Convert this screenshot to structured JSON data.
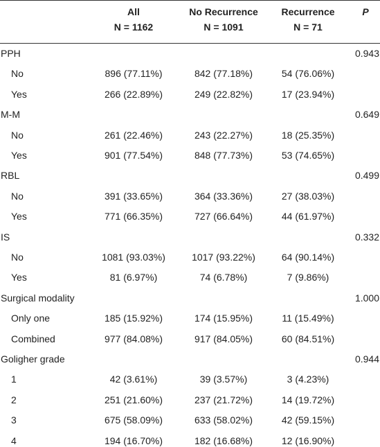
{
  "header": {
    "columns": [
      {
        "name": "All",
        "n": "N = 1162"
      },
      {
        "name": "No Recurrence",
        "n": "N = 1091"
      },
      {
        "name": "Recurrence",
        "n": "N = 71"
      }
    ],
    "p": "P"
  },
  "groups": [
    {
      "title": "PPH",
      "p": "0.943",
      "rows": [
        [
          "No",
          "896 (77.11%)",
          "842 (77.18%)",
          "54 (76.06%)"
        ],
        [
          "Yes",
          "266 (22.89%)",
          "249 (22.82%)",
          "17 (23.94%)"
        ]
      ]
    },
    {
      "title": "M-M",
      "p": "0.649",
      "rows": [
        [
          "No",
          "261 (22.46%)",
          "243 (22.27%)",
          "18 (25.35%)"
        ],
        [
          "Yes",
          "901 (77.54%)",
          "848 (77.73%)",
          "53 (74.65%)"
        ]
      ]
    },
    {
      "title": "RBL",
      "p": "0.499",
      "rows": [
        [
          "No",
          "391 (33.65%)",
          "364 (33.36%)",
          "27 (38.03%)"
        ],
        [
          "Yes",
          "771 (66.35%)",
          "727 (66.64%)",
          "44 (61.97%)"
        ]
      ]
    },
    {
      "title": "IS",
      "p": "0.332",
      "rows": [
        [
          "No",
          "1081 (93.03%)",
          "1017 (93.22%)",
          "64 (90.14%)"
        ],
        [
          "Yes",
          "81 (6.97%)",
          "74 (6.78%)",
          "7 (9.86%)"
        ]
      ]
    },
    {
      "title": "Surgical modality",
      "p": "1.000",
      "rows": [
        [
          "Only one",
          "185 (15.92%)",
          "174 (15.95%)",
          "11 (15.49%)"
        ],
        [
          "Combined",
          "977 (84.08%)",
          "917 (84.05%)",
          "60 (84.51%)"
        ]
      ]
    },
    {
      "title": "Goligher grade",
      "p": "0.944",
      "rows": [
        [
          "1",
          "42 (3.61%)",
          "39 (3.57%)",
          "3 (4.23%)"
        ],
        [
          "2",
          "251 (21.60%)",
          "237 (21.72%)",
          "14 (19.72%)"
        ],
        [
          "3",
          "675 (58.09%)",
          "633 (58.02%)",
          "42 (59.15%)"
        ],
        [
          "4",
          "194 (16.70%)",
          "182 (16.68%)",
          "12 (16.90%)"
        ]
      ]
    }
  ]
}
